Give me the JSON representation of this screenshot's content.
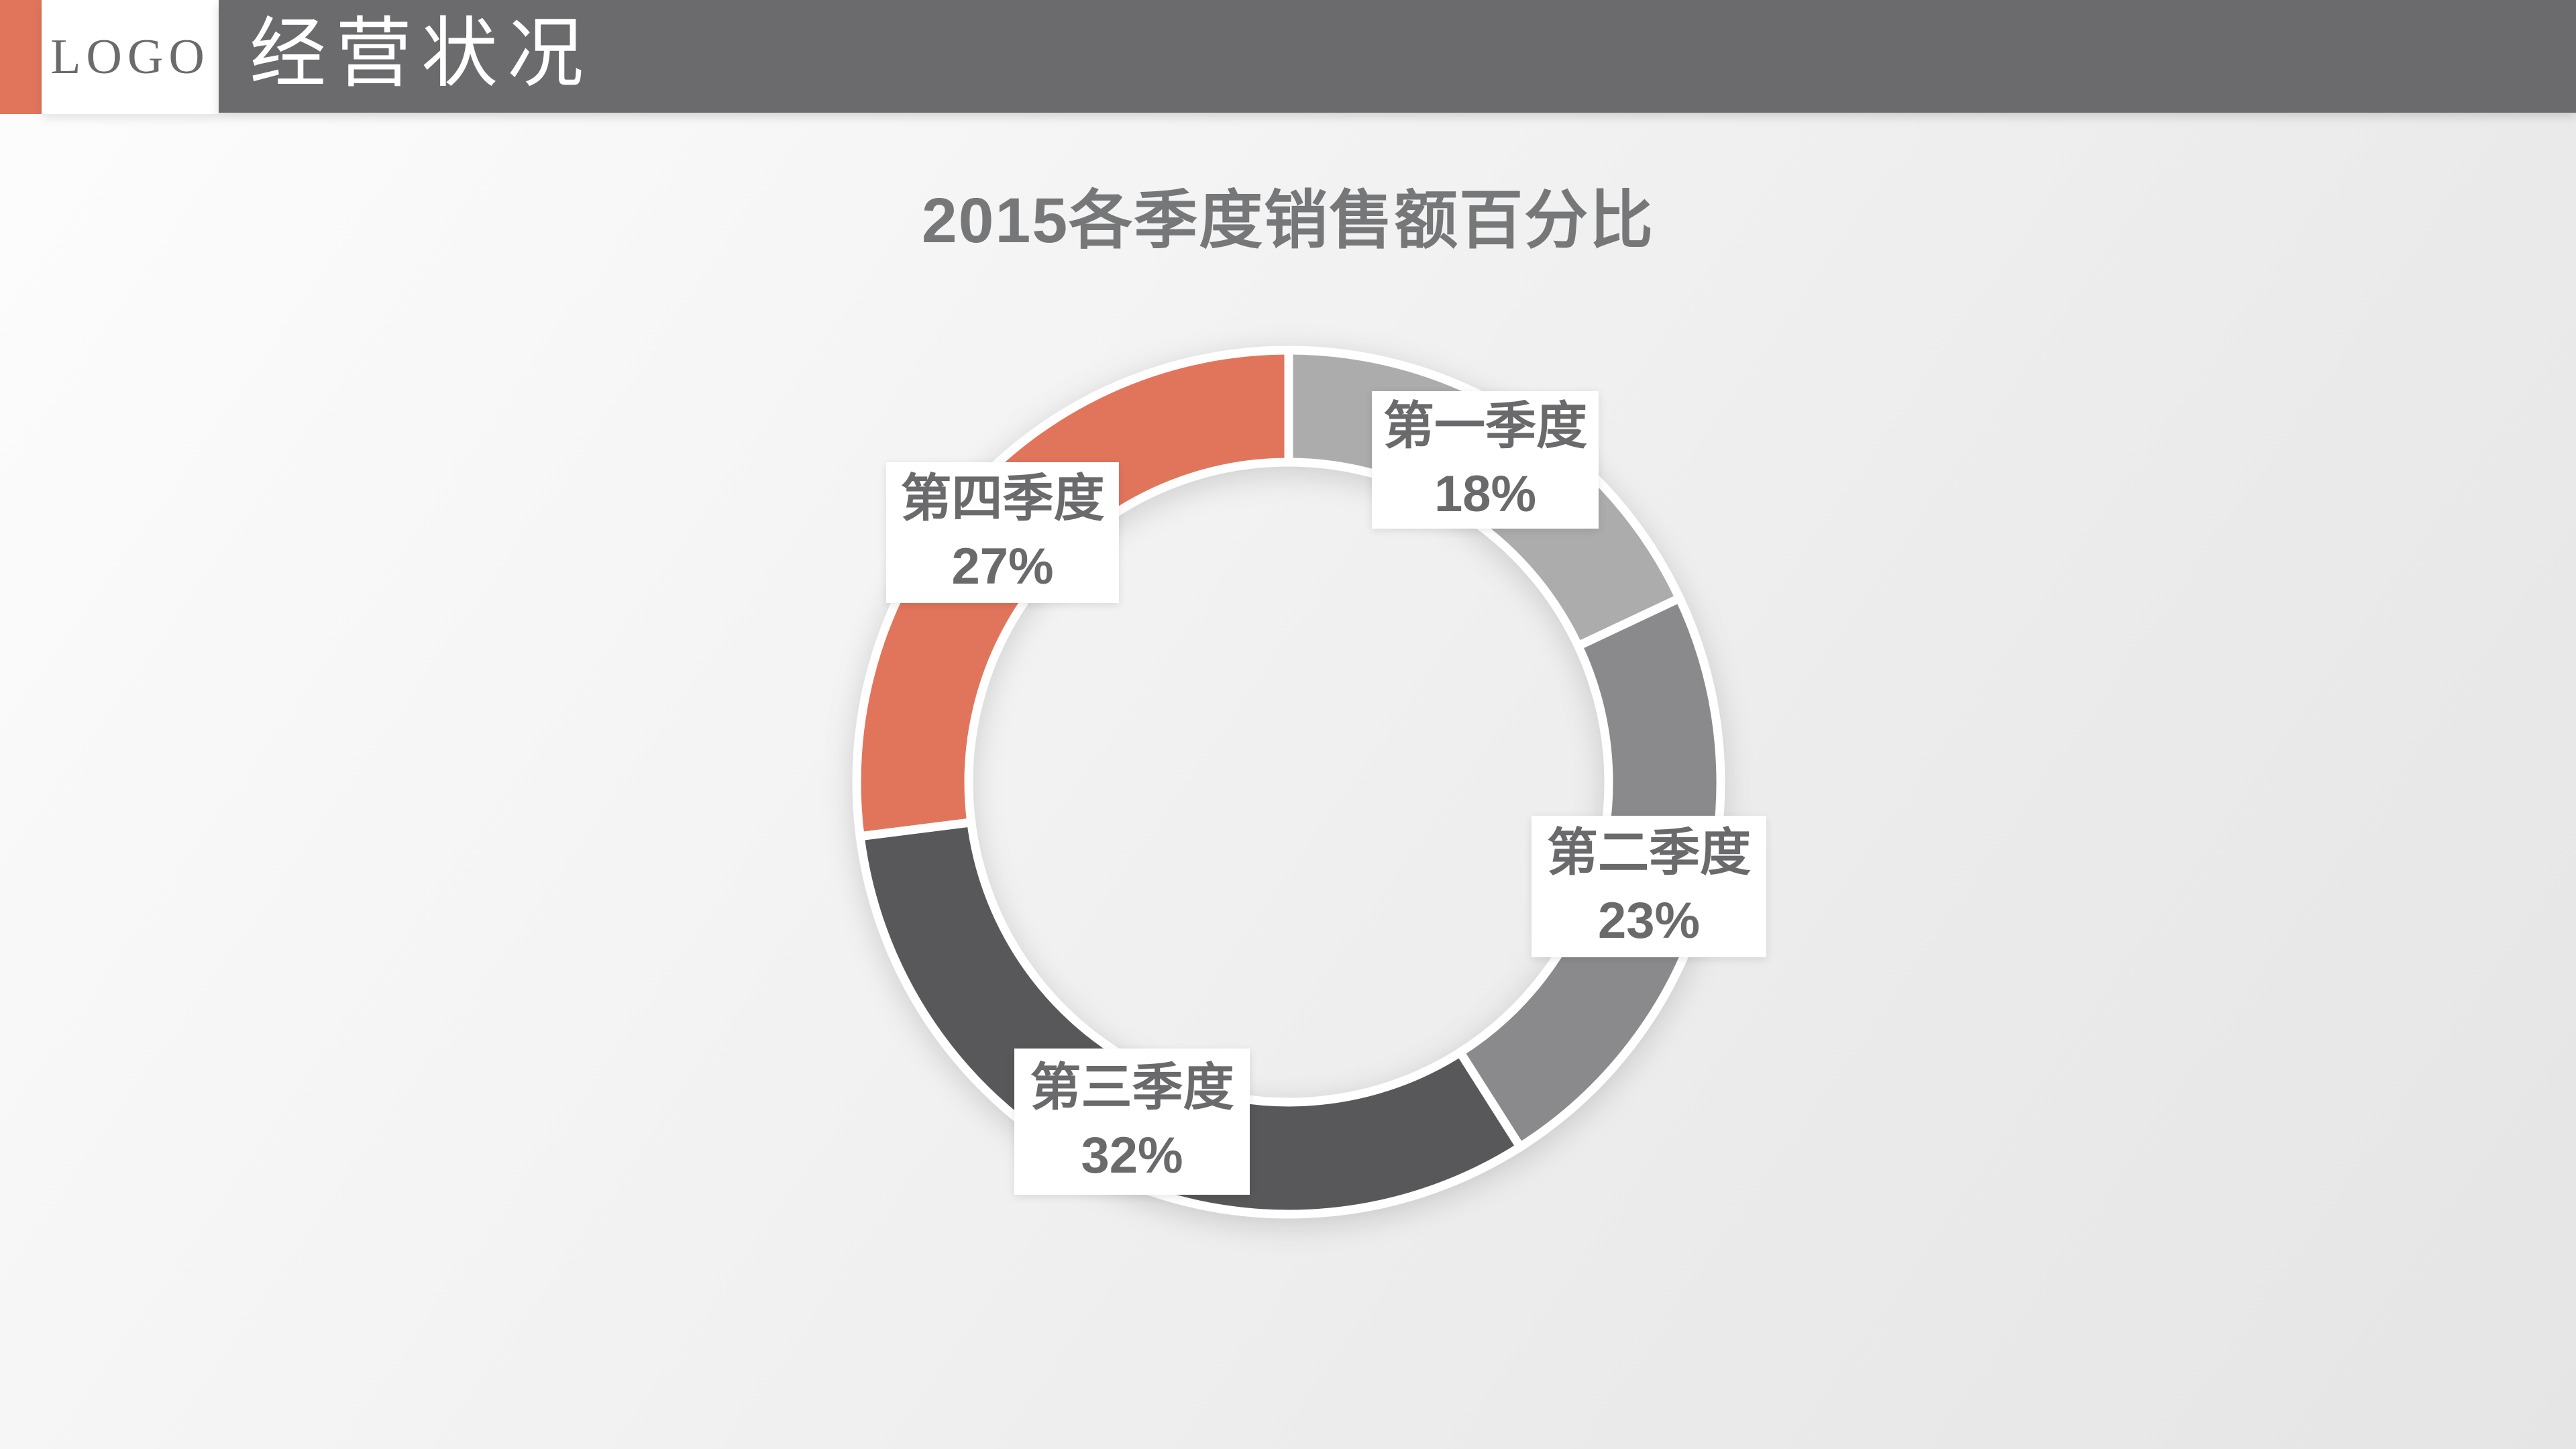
{
  "header": {
    "logo": "LOGO",
    "title": "经营状况"
  },
  "theme": {
    "accent": "#E1755B",
    "header_bg": "#6B6B6D",
    "title_color": "#767779",
    "label_color": "#6A6A6C",
    "label_bg": "#FFFFFF"
  },
  "chart_data": {
    "type": "pie",
    "subtype": "donut",
    "title": "2015各季度销售额百分比",
    "start_angle_deg": 0,
    "direction": "clockwise",
    "legend_position": "none",
    "segments": [
      {
        "label": "第一季度",
        "value": 18,
        "value_label": "18%",
        "color": "#ACACAC"
      },
      {
        "label": "第二季度",
        "value": 23,
        "value_label": "23%",
        "color": "#8A8A8C"
      },
      {
        "label": "第三季度",
        "value": 32,
        "value_label": "32%",
        "color": "#58585A"
      },
      {
        "label": "第四季度",
        "value": 27,
        "value_label": "27%",
        "color": "#E1755B"
      }
    ]
  }
}
